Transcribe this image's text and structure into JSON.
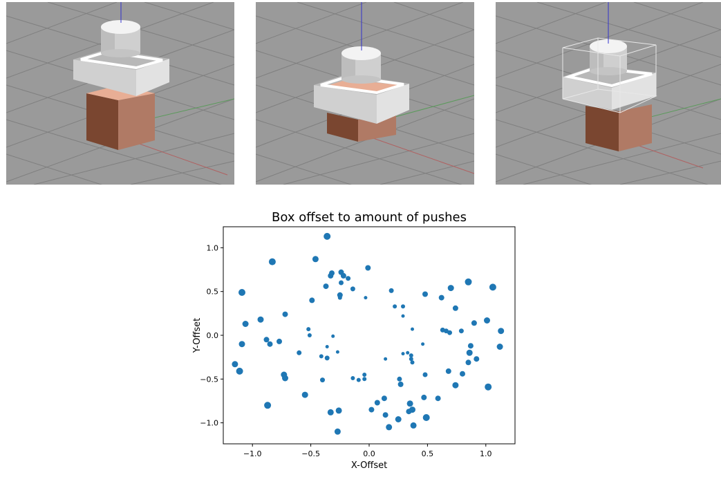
{
  "colors": {
    "floor": "#9a9a9a",
    "grid": "#7e7e7e",
    "box_light": "#e8ae95",
    "box_mid": "#b07a65",
    "box_dark": "#7a4630",
    "pusher": "#d9d9d9",
    "marker": "#1f77b4"
  },
  "chart_data": {
    "type": "scatter",
    "title": "Box offset to amount of pushes",
    "xlabel": "X-Offset",
    "ylabel": "Y-Offset",
    "xlim": [
      -1.25,
      1.25
    ],
    "ylim": [
      -1.24,
      1.24
    ],
    "xticks": [
      -1.0,
      -0.5,
      0.0,
      0.5,
      1.0
    ],
    "xtick_labels": [
      "−1.0",
      "−0.5",
      "0.0",
      "0.5",
      "1.0"
    ],
    "yticks": [
      -1.0,
      -0.5,
      0.0,
      0.5,
      1.0
    ],
    "ytick_labels": [
      "−1.0",
      "−0.5",
      "0.0",
      "0.5",
      "1.0"
    ],
    "grid": false,
    "marker_size_note": "relative marker size ~ amount of pushes",
    "points": [
      {
        "x": -0.36,
        "y": 1.13,
        "s": 5
      },
      {
        "x": -0.83,
        "y": 0.84,
        "s": 5
      },
      {
        "x": -0.46,
        "y": 0.87,
        "s": 4.5
      },
      {
        "x": -0.01,
        "y": 0.77,
        "s": 4
      },
      {
        "x": -0.33,
        "y": 0.68,
        "s": 4
      },
      {
        "x": -0.32,
        "y": 0.71,
        "s": 4
      },
      {
        "x": -0.24,
        "y": 0.72,
        "s": 4
      },
      {
        "x": -0.22,
        "y": 0.68,
        "s": 4
      },
      {
        "x": -0.18,
        "y": 0.65,
        "s": 3.5
      },
      {
        "x": -0.24,
        "y": 0.6,
        "s": 3.5
      },
      {
        "x": -0.37,
        "y": 0.56,
        "s": 4
      },
      {
        "x": -0.14,
        "y": 0.53,
        "s": 3.5
      },
      {
        "x": -0.25,
        "y": 0.46,
        "s": 4
      },
      {
        "x": -0.25,
        "y": 0.43,
        "s": 3
      },
      {
        "x": -0.49,
        "y": 0.4,
        "s": 4
      },
      {
        "x": -0.03,
        "y": 0.43,
        "s": 2.5
      },
      {
        "x": -1.09,
        "y": 0.49,
        "s": 5
      },
      {
        "x": 0.19,
        "y": 0.51,
        "s": 3.5
      },
      {
        "x": 0.48,
        "y": 0.47,
        "s": 4
      },
      {
        "x": 0.7,
        "y": 0.54,
        "s": 4.5
      },
      {
        "x": 0.85,
        "y": 0.61,
        "s": 5
      },
      {
        "x": 1.06,
        "y": 0.55,
        "s": 5
      },
      {
        "x": 0.62,
        "y": 0.43,
        "s": 4
      },
      {
        "x": 0.74,
        "y": 0.31,
        "s": 4
      },
      {
        "x": 0.22,
        "y": 0.33,
        "s": 3
      },
      {
        "x": 0.29,
        "y": 0.33,
        "s": 3
      },
      {
        "x": 0.29,
        "y": 0.22,
        "s": 2.5
      },
      {
        "x": -0.72,
        "y": 0.24,
        "s": 4
      },
      {
        "x": -0.93,
        "y": 0.18,
        "s": 4.5
      },
      {
        "x": -1.06,
        "y": 0.13,
        "s": 4.5
      },
      {
        "x": 0.9,
        "y": 0.14,
        "s": 4
      },
      {
        "x": 1.01,
        "y": 0.17,
        "s": 4.5
      },
      {
        "x": 1.13,
        "y": 0.05,
        "s": 4.5
      },
      {
        "x": 0.63,
        "y": 0.06,
        "s": 3.5
      },
      {
        "x": 0.66,
        "y": 0.05,
        "s": 3.5
      },
      {
        "x": 0.69,
        "y": 0.03,
        "s": 3.5
      },
      {
        "x": 0.79,
        "y": 0.05,
        "s": 3.5
      },
      {
        "x": 0.37,
        "y": 0.07,
        "s": 2.5
      },
      {
        "x": -0.52,
        "y": 0.07,
        "s": 3
      },
      {
        "x": -0.51,
        "y": 0.0,
        "s": 3
      },
      {
        "x": -0.31,
        "y": -0.01,
        "s": 2.5
      },
      {
        "x": -0.88,
        "y": -0.05,
        "s": 4
      },
      {
        "x": -0.85,
        "y": -0.1,
        "s": 4
      },
      {
        "x": -0.77,
        "y": -0.07,
        "s": 4
      },
      {
        "x": -1.09,
        "y": -0.1,
        "s": 4.5
      },
      {
        "x": -0.36,
        "y": -0.13,
        "s": 2.5
      },
      {
        "x": -0.27,
        "y": -0.19,
        "s": 2.5
      },
      {
        "x": -0.6,
        "y": -0.2,
        "s": 3.5
      },
      {
        "x": -0.41,
        "y": -0.24,
        "s": 3
      },
      {
        "x": -0.36,
        "y": -0.26,
        "s": 3.5
      },
      {
        "x": 0.46,
        "y": -0.1,
        "s": 2.5
      },
      {
        "x": 0.29,
        "y": -0.21,
        "s": 2.5
      },
      {
        "x": 0.33,
        "y": -0.2,
        "s": 2.5
      },
      {
        "x": 0.36,
        "y": -0.23,
        "s": 3
      },
      {
        "x": 0.36,
        "y": -0.27,
        "s": 3
      },
      {
        "x": 0.14,
        "y": -0.27,
        "s": 2.5
      },
      {
        "x": 0.87,
        "y": -0.12,
        "s": 4
      },
      {
        "x": 0.86,
        "y": -0.2,
        "s": 4.5
      },
      {
        "x": 0.92,
        "y": -0.27,
        "s": 4
      },
      {
        "x": 1.12,
        "y": -0.13,
        "s": 4.5
      },
      {
        "x": 0.85,
        "y": -0.31,
        "s": 4
      },
      {
        "x": 0.37,
        "y": -0.31,
        "s": 3
      },
      {
        "x": 0.68,
        "y": -0.41,
        "s": 4
      },
      {
        "x": 0.8,
        "y": -0.44,
        "s": 4
      },
      {
        "x": 0.48,
        "y": -0.45,
        "s": 3.5
      },
      {
        "x": -1.15,
        "y": -0.33,
        "s": 4.5
      },
      {
        "x": -1.11,
        "y": -0.41,
        "s": 5
      },
      {
        "x": -0.73,
        "y": -0.45,
        "s": 4.5
      },
      {
        "x": -0.72,
        "y": -0.49,
        "s": 4.5
      },
      {
        "x": -0.4,
        "y": -0.51,
        "s": 3.5
      },
      {
        "x": -0.14,
        "y": -0.49,
        "s": 3
      },
      {
        "x": -0.09,
        "y": -0.51,
        "s": 3
      },
      {
        "x": -0.04,
        "y": -0.45,
        "s": 3
      },
      {
        "x": -0.04,
        "y": -0.5,
        "s": 3
      },
      {
        "x": 0.26,
        "y": -0.5,
        "s": 3.5
      },
      {
        "x": 0.27,
        "y": -0.56,
        "s": 4
      },
      {
        "x": 0.74,
        "y": -0.57,
        "s": 4.5
      },
      {
        "x": 1.02,
        "y": -0.59,
        "s": 5
      },
      {
        "x": -0.55,
        "y": -0.68,
        "s": 4.5
      },
      {
        "x": 0.13,
        "y": -0.72,
        "s": 4
      },
      {
        "x": 0.47,
        "y": -0.71,
        "s": 4
      },
      {
        "x": 0.59,
        "y": -0.72,
        "s": 4
      },
      {
        "x": 0.07,
        "y": -0.77,
        "s": 4
      },
      {
        "x": 0.35,
        "y": -0.78,
        "s": 4.5
      },
      {
        "x": -0.87,
        "y": -0.8,
        "s": 5
      },
      {
        "x": -0.33,
        "y": -0.88,
        "s": 4.5
      },
      {
        "x": -0.26,
        "y": -0.86,
        "s": 4.5
      },
      {
        "x": 0.02,
        "y": -0.85,
        "s": 4
      },
      {
        "x": 0.34,
        "y": -0.87,
        "s": 4
      },
      {
        "x": 0.37,
        "y": -0.85,
        "s": 4.5
      },
      {
        "x": 0.14,
        "y": -0.91,
        "s": 4
      },
      {
        "x": 0.25,
        "y": -0.96,
        "s": 4.5
      },
      {
        "x": 0.49,
        "y": -0.94,
        "s": 5
      },
      {
        "x": 0.17,
        "y": -1.05,
        "s": 4.5
      },
      {
        "x": 0.38,
        "y": -1.03,
        "s": 4.5
      },
      {
        "x": -0.27,
        "y": -1.1,
        "s": 4.5
      }
    ]
  }
}
